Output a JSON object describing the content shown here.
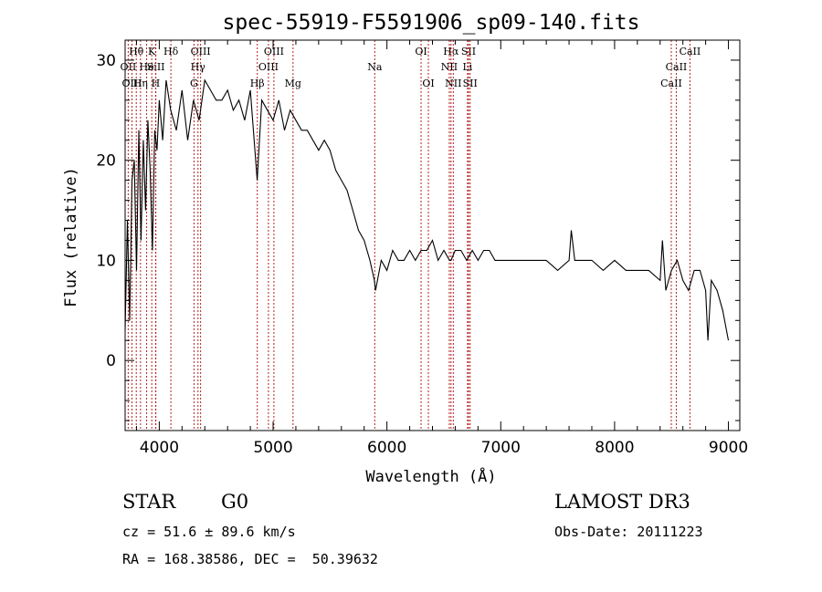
{
  "chart_data": {
    "type": "line",
    "title": "spec-55919-F5591906_sp09-140.fits",
    "xlabel": "Wavelength (Å)",
    "ylabel": "Flux (relative)",
    "xlim": [
      3700,
      9100
    ],
    "ylim": [
      -7,
      32
    ],
    "xticks": [
      4000,
      5000,
      6000,
      7000,
      8000,
      9000
    ],
    "yticks": [
      0,
      10,
      20,
      30
    ],
    "grid": false,
    "series": [
      {
        "name": "flux",
        "x": [
          3700,
          3720,
          3740,
          3760,
          3780,
          3800,
          3820,
          3840,
          3860,
          3880,
          3900,
          3920,
          3940,
          3960,
          3980,
          4000,
          4030,
          4060,
          4100,
          4150,
          4200,
          4250,
          4300,
          4350,
          4400,
          4450,
          4500,
          4550,
          4600,
          4650,
          4700,
          4750,
          4800,
          4860,
          4900,
          4950,
          5000,
          5050,
          5100,
          5150,
          5200,
          5250,
          5300,
          5350,
          5400,
          5450,
          5500,
          5550,
          5600,
          5650,
          5700,
          5750,
          5800,
          5850,
          5890,
          5900,
          5950,
          6000,
          6050,
          6100,
          6150,
          6200,
          6250,
          6300,
          6350,
          6400,
          6450,
          6500,
          6550,
          6563,
          6600,
          6650,
          6700,
          6750,
          6800,
          6850,
          6900,
          6950,
          7000,
          7100,
          7200,
          7300,
          7400,
          7500,
          7600,
          7620,
          7650,
          7700,
          7800,
          7900,
          8000,
          8100,
          8200,
          8300,
          8400,
          8420,
          8450,
          8500,
          8550,
          8600,
          8650,
          8700,
          8750,
          8800,
          8820,
          8850,
          8900,
          8950,
          9000
        ],
        "values": [
          3,
          14,
          4,
          18,
          20,
          9,
          23,
          12,
          22,
          15,
          24,
          19,
          11,
          23,
          21,
          26,
          22,
          28,
          25,
          23,
          27,
          22,
          26,
          24,
          28,
          27,
          26,
          26,
          27,
          25,
          26,
          24,
          27,
          18,
          26,
          25,
          24,
          26,
          23,
          25,
          24,
          23,
          23,
          22,
          21,
          22,
          21,
          19,
          18,
          17,
          15,
          13,
          12,
          10,
          8,
          7,
          10,
          9,
          11,
          10,
          10,
          11,
          10,
          11,
          11,
          12,
          10,
          11,
          10,
          10,
          11,
          11,
          10,
          11,
          10,
          11,
          11,
          10,
          10,
          10,
          10,
          10,
          10,
          9,
          10,
          13,
          10,
          10,
          10,
          9,
          10,
          9,
          9,
          9,
          8,
          12,
          7,
          9,
          10,
          8,
          7,
          9,
          9,
          7,
          2,
          8,
          7,
          5,
          2
        ]
      }
    ],
    "spectral_lines": [
      {
        "label": "Hθ",
        "wavelength": 3798,
        "row": 1
      },
      {
        "label": "K",
        "wavelength": 3934,
        "row": 1
      },
      {
        "label": "Hδ",
        "wavelength": 4102,
        "row": 1
      },
      {
        "label": "OIII",
        "wavelength": 4363,
        "row": 1
      },
      {
        "label": "OIII",
        "wavelength": 5007,
        "row": 1
      },
      {
        "label": "OI",
        "wavelength": 6300,
        "row": 1
      },
      {
        "label": "Hα",
        "wavelength": 6563,
        "row": 1
      },
      {
        "label": "SII",
        "wavelength": 6717,
        "row": 1
      },
      {
        "label": "CaII",
        "wavelength": 8662,
        "row": 1
      },
      {
        "label": "OII",
        "wavelength": 3727,
        "row": 2
      },
      {
        "label": "He",
        "wavelength": 3889,
        "row": 2
      },
      {
        "label": "SiII",
        "wavelength": 3970,
        "row": 2
      },
      {
        "label": "Hγ",
        "wavelength": 4340,
        "row": 2
      },
      {
        "label": "OIII",
        "wavelength": 4959,
        "row": 2
      },
      {
        "label": "Na",
        "wavelength": 5893,
        "row": 2
      },
      {
        "label": "NII",
        "wavelength": 6548,
        "row": 2
      },
      {
        "label": "Li",
        "wavelength": 6708,
        "row": 2
      },
      {
        "label": "CaII",
        "wavelength": 8542,
        "row": 2
      },
      {
        "label": "OIII",
        "wavelength": 3760,
        "row": 3
      },
      {
        "label": "Hη",
        "wavelength": 3835,
        "row": 3
      },
      {
        "label": "H",
        "wavelength": 3968,
        "row": 3
      },
      {
        "label": "G",
        "wavelength": 4305,
        "row": 3
      },
      {
        "label": "Hβ",
        "wavelength": 4861,
        "row": 3
      },
      {
        "label": "Mg",
        "wavelength": 5175,
        "row": 3
      },
      {
        "label": "OI",
        "wavelength": 6364,
        "row": 3
      },
      {
        "label": "NII",
        "wavelength": 6583,
        "row": 3
      },
      {
        "label": "SII",
        "wavelength": 6731,
        "row": 3
      },
      {
        "label": "CaII",
        "wavelength": 8498,
        "row": 3
      }
    ],
    "line_color": "#b22222"
  },
  "info": {
    "object_class": "STAR",
    "subclass": "G0",
    "survey": "LAMOST DR3",
    "cz": "cz = 51.6 ± 89.6 km/s",
    "obs_date": "Obs-Date: 20111223",
    "coords": "RA = 168.38586, DEC =  50.39632"
  }
}
